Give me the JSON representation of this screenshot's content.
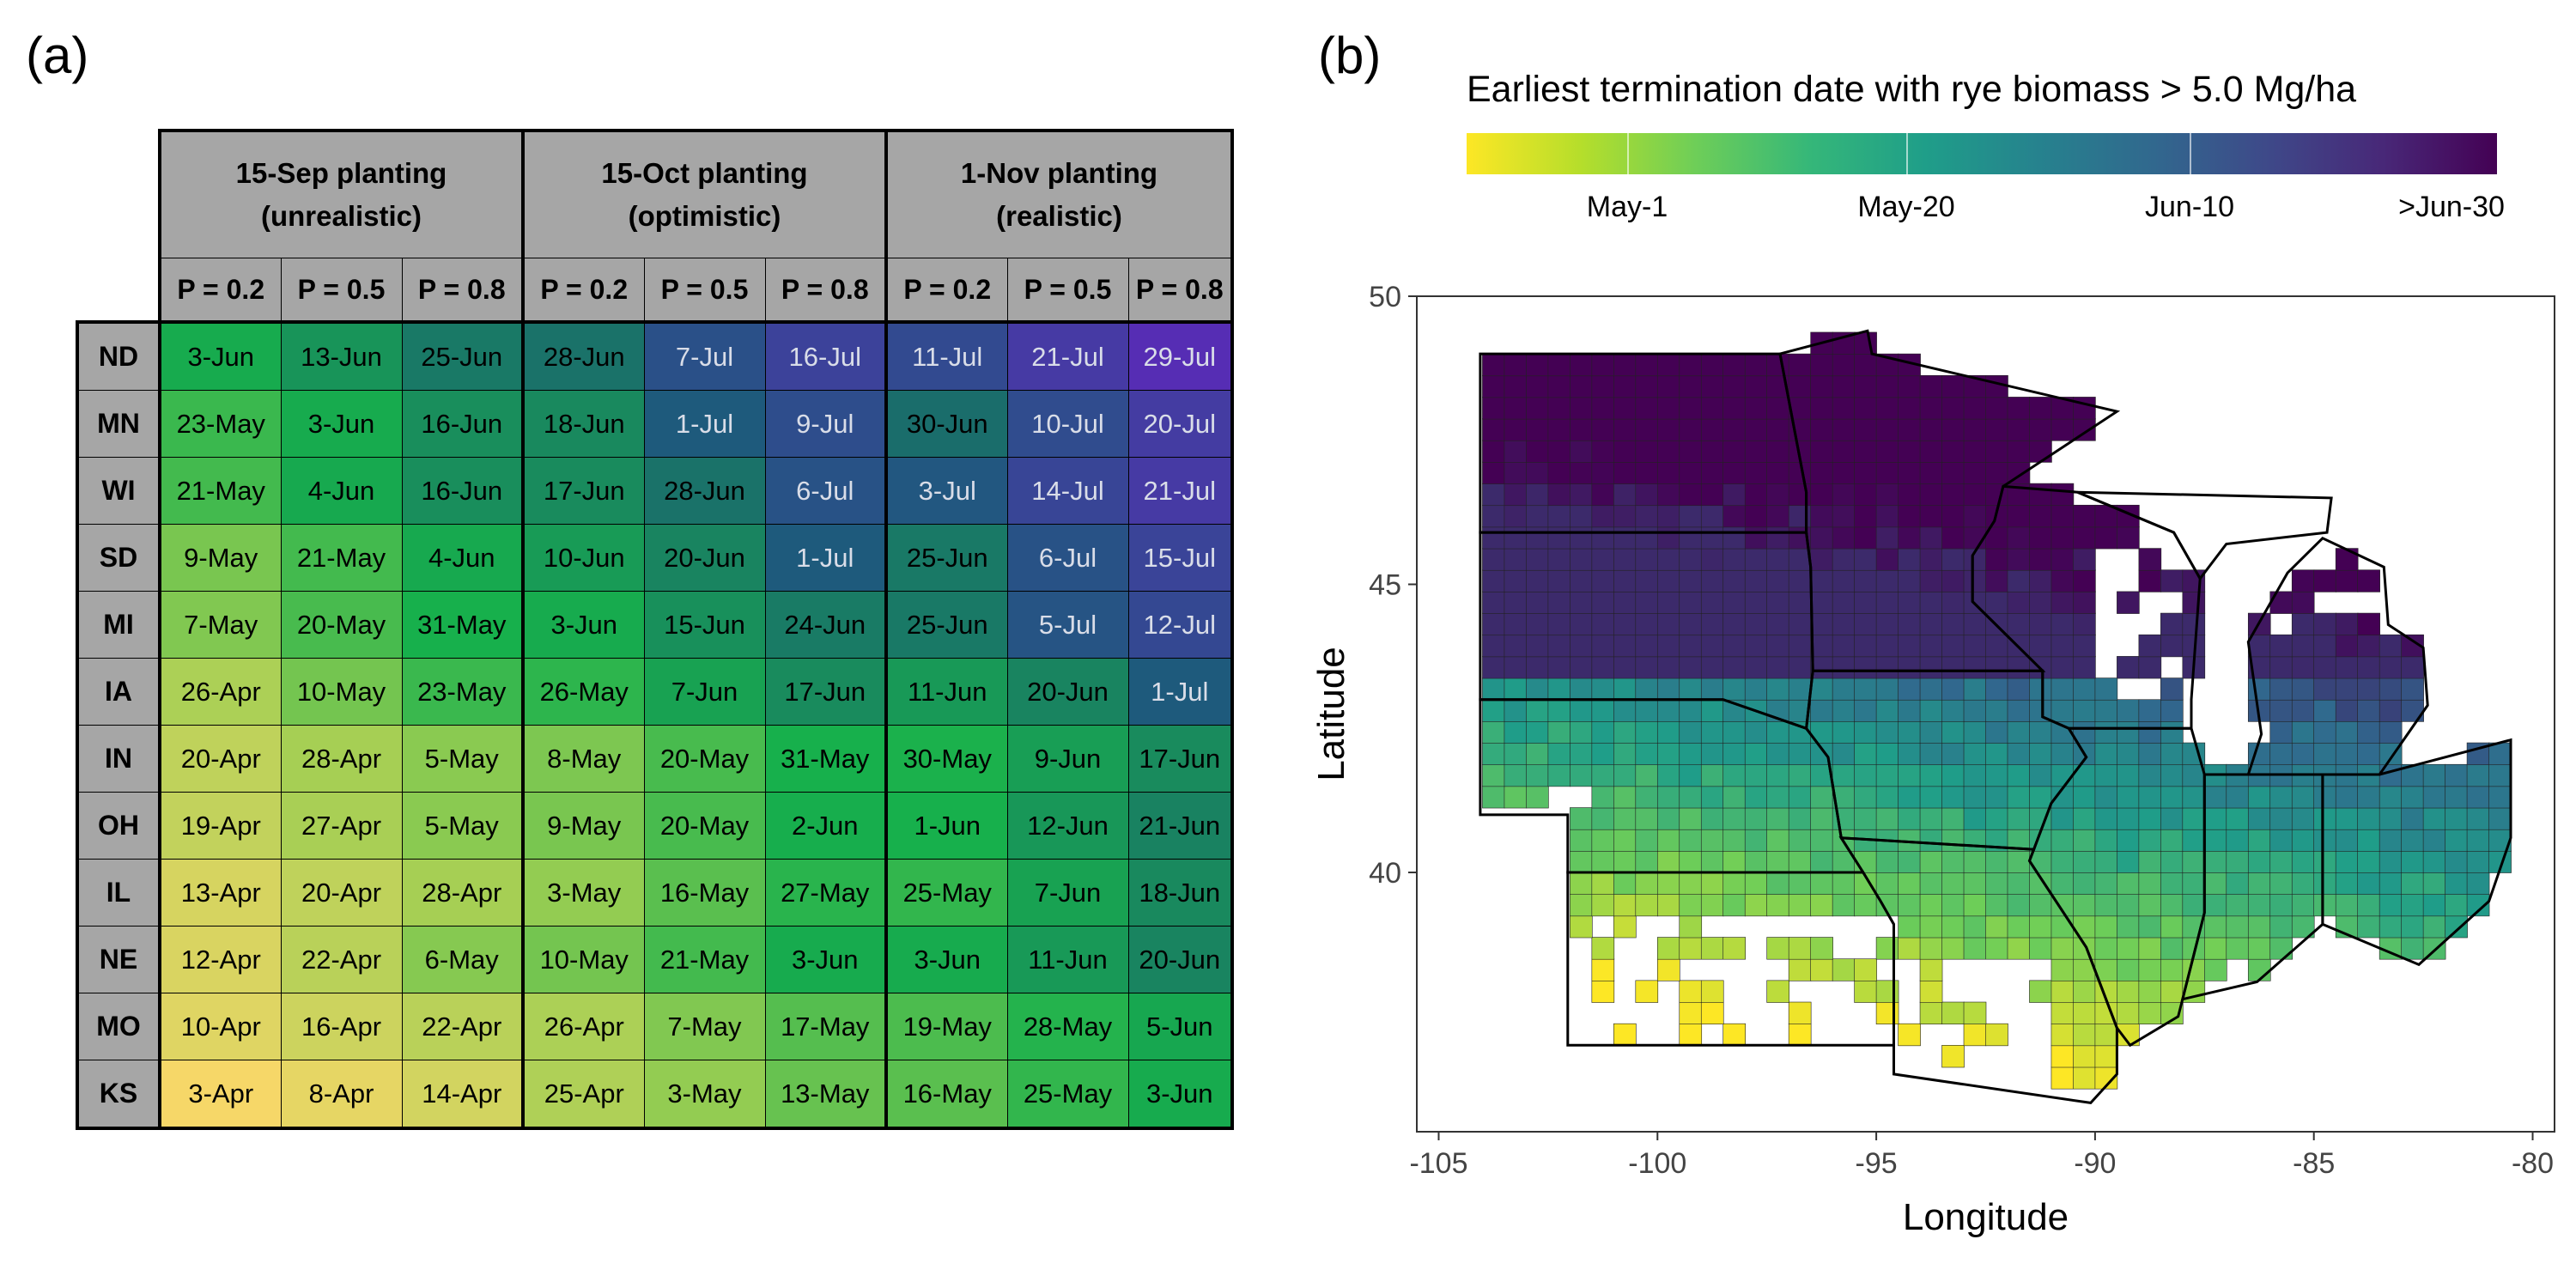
{
  "panel_a_label": "(a)",
  "panel_b_label": "(b)",
  "table": {
    "groups": [
      "15-Sep planting\n(unrealistic)",
      "15-Oct planting\n(optimistic)",
      "1-Nov planting\n(realistic)"
    ],
    "prob_labels": [
      "P = 0.2",
      "P = 0.5",
      "P = 0.8",
      "P = 0.2",
      "P = 0.5",
      "P = 0.8",
      "P = 0.2",
      "P = 0.5",
      "P = 0.8"
    ],
    "rows": [
      {
        "state": "ND",
        "values": [
          "3-Jun",
          "13-Jun",
          "25-Jun",
          "28-Jun",
          "7-Jul",
          "16-Jul",
          "11-Jul",
          "21-Jul",
          "29-Jul"
        ]
      },
      {
        "state": "MN",
        "values": [
          "23-May",
          "3-Jun",
          "16-Jun",
          "18-Jun",
          "1-Jul",
          "9-Jul",
          "30-Jun",
          "10-Jul",
          "20-Jul"
        ]
      },
      {
        "state": "WI",
        "values": [
          "21-May",
          "4-Jun",
          "16-Jun",
          "17-Jun",
          "28-Jun",
          "6-Jul",
          "3-Jul",
          "14-Jul",
          "21-Jul"
        ]
      },
      {
        "state": "SD",
        "values": [
          "9-May",
          "21-May",
          "4-Jun",
          "10-Jun",
          "20-Jun",
          "1-Jul",
          "25-Jun",
          "6-Jul",
          "15-Jul"
        ]
      },
      {
        "state": "MI",
        "values": [
          "7-May",
          "20-May",
          "31-May",
          "3-Jun",
          "15-Jun",
          "24-Jun",
          "25-Jun",
          "5-Jul",
          "12-Jul"
        ]
      },
      {
        "state": "IA",
        "values": [
          "26-Apr",
          "10-May",
          "23-May",
          "26-May",
          "7-Jun",
          "17-Jun",
          "11-Jun",
          "20-Jun",
          "1-Jul"
        ]
      },
      {
        "state": "IN",
        "values": [
          "20-Apr",
          "28-Apr",
          "5-May",
          "8-May",
          "20-May",
          "31-May",
          "30-May",
          "9-Jun",
          "17-Jun"
        ]
      },
      {
        "state": "OH",
        "values": [
          "19-Apr",
          "27-Apr",
          "5-May",
          "9-May",
          "20-May",
          "2-Jun",
          "1-Jun",
          "12-Jun",
          "21-Jun"
        ]
      },
      {
        "state": "IL",
        "values": [
          "13-Apr",
          "20-Apr",
          "28-Apr",
          "3-May",
          "16-May",
          "27-May",
          "25-May",
          "7-Jun",
          "18-Jun"
        ]
      },
      {
        "state": "NE",
        "values": [
          "12-Apr",
          "22-Apr",
          "6-May",
          "10-May",
          "21-May",
          "3-Jun",
          "3-Jun",
          "11-Jun",
          "20-Jun"
        ]
      },
      {
        "state": "MO",
        "values": [
          "10-Apr",
          "16-Apr",
          "22-Apr",
          "26-Apr",
          "7-May",
          "17-May",
          "19-May",
          "28-May",
          "5-Jun"
        ]
      },
      {
        "state": "KS",
        "values": [
          "3-Apr",
          "8-Apr",
          "14-Apr",
          "25-Apr",
          "3-May",
          "13-May",
          "16-May",
          "25-May",
          "3-Jun"
        ]
      }
    ],
    "colors": {
      "Apr": {
        "start": "#fcd86a",
        "end": "#9cce52"
      },
      "May": {
        "start": "#9cce52",
        "end": "#17b04c"
      },
      "Jun": {
        "start": "#17b04c",
        "end": "#1a6b6c"
      },
      "Jul": {
        "start": "#1e5a7c",
        "end": "#5a2ab8"
      }
    }
  },
  "map": {
    "legend_title": "Earliest termination date with rye biomass > 5.0 Mg/ha",
    "legend_labels": [
      "May-1",
      "May-20",
      "Jun-10",
      ">Jun-30"
    ],
    "legend_colors": [
      "#fde725",
      "#6ece58",
      "#1f9e89",
      "#31688e",
      "#440154"
    ]
  },
  "chart_data": {
    "type": "map",
    "xlabel": "Longitude",
    "ylabel": "Latitude",
    "xlim": [
      -105.5,
      -79.5
    ],
    "ylim": [
      35.5,
      50
    ],
    "xticks": [
      -105,
      -100,
      -95,
      -90,
      -85,
      -80
    ],
    "yticks": [
      40,
      45,
      50
    ],
    "xtick_labels": [
      "-105",
      "-100",
      "-95",
      "-90",
      "-85",
      "-80"
    ],
    "ytick_labels": [
      "40",
      "45",
      "50"
    ],
    "state_outlines": [
      {
        "name": "ND",
        "lonlat": [
          [
            -104.05,
            49
          ],
          [
            -97.2,
            49
          ],
          [
            -96.6,
            46.6
          ],
          [
            -96.6,
            45.9
          ],
          [
            -104.05,
            45.9
          ]
        ]
      },
      {
        "name": "SD",
        "lonlat": [
          [
            -104.05,
            45.9
          ],
          [
            -96.6,
            45.9
          ],
          [
            -96.5,
            45.3
          ],
          [
            -96.45,
            43.5
          ],
          [
            -96.6,
            42.5
          ],
          [
            -98.5,
            43
          ],
          [
            -104.05,
            43
          ]
        ]
      },
      {
        "name": "NE",
        "lonlat": [
          [
            -104.05,
            43
          ],
          [
            -98.5,
            43
          ],
          [
            -96.6,
            42.5
          ],
          [
            -96.1,
            42
          ],
          [
            -95.8,
            40.6
          ],
          [
            -95.3,
            40
          ],
          [
            -102.05,
            40
          ],
          [
            -102.05,
            41
          ],
          [
            -104.05,
            41
          ]
        ]
      },
      {
        "name": "KS",
        "lonlat": [
          [
            -102.05,
            40
          ],
          [
            -95.3,
            40
          ],
          [
            -94.9,
            39.5
          ],
          [
            -94.6,
            39.1
          ],
          [
            -94.6,
            37
          ],
          [
            -102.05,
            37
          ]
        ]
      },
      {
        "name": "MN",
        "lonlat": [
          [
            -97.2,
            49
          ],
          [
            -95.2,
            49.4
          ],
          [
            -95.1,
            49
          ],
          [
            -89.5,
            48
          ],
          [
            -92.1,
            46.7
          ],
          [
            -92.3,
            46.1
          ],
          [
            -92.8,
            45.5
          ],
          [
            -92.8,
            44.7
          ],
          [
            -91.2,
            43.5
          ],
          [
            -96.45,
            43.5
          ],
          [
            -96.5,
            45.3
          ],
          [
            -96.6,
            45.9
          ],
          [
            -96.6,
            46.6
          ]
        ]
      },
      {
        "name": "IA",
        "lonlat": [
          [
            -96.45,
            43.5
          ],
          [
            -91.2,
            43.5
          ],
          [
            -91.2,
            42.7
          ],
          [
            -90.6,
            42.5
          ],
          [
            -90.2,
            42
          ],
          [
            -91,
            41.2
          ],
          [
            -91.4,
            40.4
          ],
          [
            -95.8,
            40.6
          ],
          [
            -96.1,
            42
          ],
          [
            -96.6,
            42.5
          ]
        ]
      },
      {
        "name": "MO",
        "lonlat": [
          [
            -95.8,
            40.6
          ],
          [
            -91.4,
            40.4
          ],
          [
            -91.5,
            40.2
          ],
          [
            -90.2,
            38.7
          ],
          [
            -89.5,
            37.3
          ],
          [
            -89.5,
            36.5
          ],
          [
            -90.1,
            36
          ],
          [
            -94.6,
            36.5
          ],
          [
            -94.6,
            39.1
          ],
          [
            -94.9,
            39.5
          ],
          [
            -95.3,
            40
          ]
        ]
      },
      {
        "name": "WI",
        "lonlat": [
          [
            -92.1,
            46.7
          ],
          [
            -90.4,
            46.6
          ],
          [
            -88.2,
            45.9
          ],
          [
            -87.6,
            45.1
          ],
          [
            -87.8,
            43
          ],
          [
            -87.8,
            42.5
          ],
          [
            -90.6,
            42.5
          ],
          [
            -91.2,
            42.7
          ],
          [
            -91.2,
            43.5
          ],
          [
            -92.8,
            44.7
          ],
          [
            -92.8,
            45.5
          ],
          [
            -92.3,
            46.1
          ]
        ]
      },
      {
        "name": "IL",
        "lonlat": [
          [
            -90.6,
            42.5
          ],
          [
            -87.8,
            42.5
          ],
          [
            -87.5,
            41.7
          ],
          [
            -87.5,
            39.3
          ],
          [
            -88,
            37.8
          ],
          [
            -88.1,
            37.5
          ],
          [
            -89.2,
            37
          ],
          [
            -89.5,
            37.3
          ],
          [
            -90.2,
            38.7
          ],
          [
            -91.5,
            40.2
          ],
          [
            -91.4,
            40.4
          ],
          [
            -91,
            41.2
          ],
          [
            -90.2,
            42
          ]
        ]
      },
      {
        "name": "IN",
        "lonlat": [
          [
            -87.5,
            41.7
          ],
          [
            -84.8,
            41.7
          ],
          [
            -84.8,
            39.1
          ],
          [
            -86.3,
            38.1
          ],
          [
            -88,
            37.8
          ],
          [
            -87.5,
            39.3
          ]
        ]
      },
      {
        "name": "OH",
        "lonlat": [
          [
            -84.8,
            41.7
          ],
          [
            -83.5,
            41.7
          ],
          [
            -80.5,
            42.3
          ],
          [
            -80.5,
            40.6
          ],
          [
            -81,
            39.5
          ],
          [
            -82.6,
            38.4
          ],
          [
            -84.8,
            39.1
          ]
        ]
      },
      {
        "name": "MI_UP",
        "lonlat": [
          [
            -90.4,
            46.6
          ],
          [
            -84.6,
            46.5
          ],
          [
            -84.7,
            45.9
          ],
          [
            -87,
            45.7
          ],
          [
            -87.6,
            45.1
          ],
          [
            -88.2,
            45.9
          ]
        ]
      },
      {
        "name": "MI_LP",
        "lonlat": [
          [
            -86.5,
            41.7
          ],
          [
            -86.2,
            42.4
          ],
          [
            -86.5,
            44
          ],
          [
            -85.6,
            45.2
          ],
          [
            -84.8,
            45.8
          ],
          [
            -83.4,
            45.3
          ],
          [
            -83.3,
            44.3
          ],
          [
            -82.5,
            43.9
          ],
          [
            -82.4,
            42.9
          ],
          [
            -83.5,
            41.7
          ]
        ]
      }
    ],
    "county_fill_model": "termination date ordinal (day of year) by longitude and latitude",
    "color_scale": {
      "min_label": "May-1",
      "max_label": ">Jun-30"
    }
  }
}
